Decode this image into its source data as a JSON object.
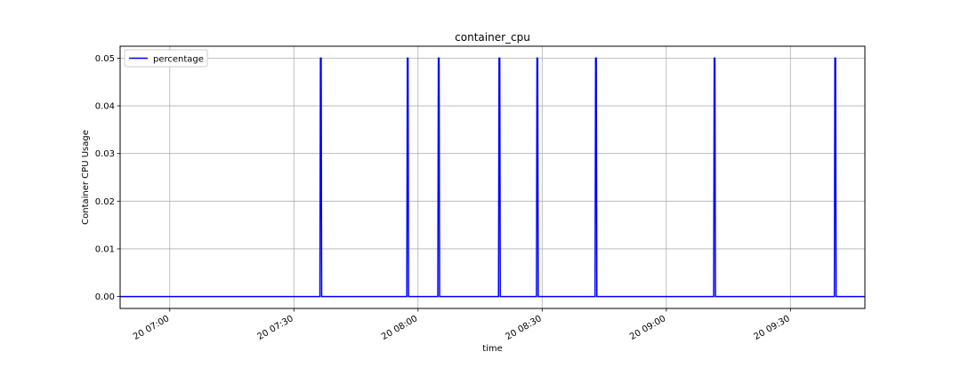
{
  "chart_data": {
    "type": "line",
    "title": "container_cpu",
    "xlabel": "time",
    "ylabel": "Container CPU Usage",
    "legend": {
      "position": "top-left"
    },
    "grid": true,
    "xlim": [
      "2024-01-20T06:48:00",
      "2024-01-20T09:48:00"
    ],
    "ylim": [
      -0.0025,
      0.0525
    ],
    "x_ticks": [
      {
        "t": "2024-01-20T07:00:00",
        "label": "20 07:00"
      },
      {
        "t": "2024-01-20T07:30:00",
        "label": "20 07:30"
      },
      {
        "t": "2024-01-20T08:00:00",
        "label": "20 08:00"
      },
      {
        "t": "2024-01-20T08:30:00",
        "label": "20 08:30"
      },
      {
        "t": "2024-01-20T09:00:00",
        "label": "20 09:00"
      },
      {
        "t": "2024-01-20T09:30:00",
        "label": "20 09:30"
      }
    ],
    "y_ticks": [
      {
        "v": 0.0,
        "label": "0.00"
      },
      {
        "v": 0.01,
        "label": "0.01"
      },
      {
        "v": 0.02,
        "label": "0.02"
      },
      {
        "v": 0.03,
        "label": "0.03"
      },
      {
        "v": 0.04,
        "label": "0.04"
      },
      {
        "v": 0.05,
        "label": "0.05"
      }
    ],
    "series": [
      {
        "name": "percentage",
        "color": "#0000ff",
        "baseline": 0.0,
        "spikes": [
          {
            "t": "2024-01-20T07:36:30",
            "value": 0.05
          },
          {
            "t": "2024-01-20T07:57:30",
            "value": 0.05
          },
          {
            "t": "2024-01-20T08:05:00",
            "value": 0.05
          },
          {
            "t": "2024-01-20T08:19:40",
            "value": 0.05
          },
          {
            "t": "2024-01-20T08:28:50",
            "value": 0.05
          },
          {
            "t": "2024-01-20T08:43:00",
            "value": 0.05
          },
          {
            "t": "2024-01-20T09:11:40",
            "value": 0.05
          },
          {
            "t": "2024-01-20T09:40:50",
            "value": 0.05
          }
        ]
      }
    ]
  }
}
